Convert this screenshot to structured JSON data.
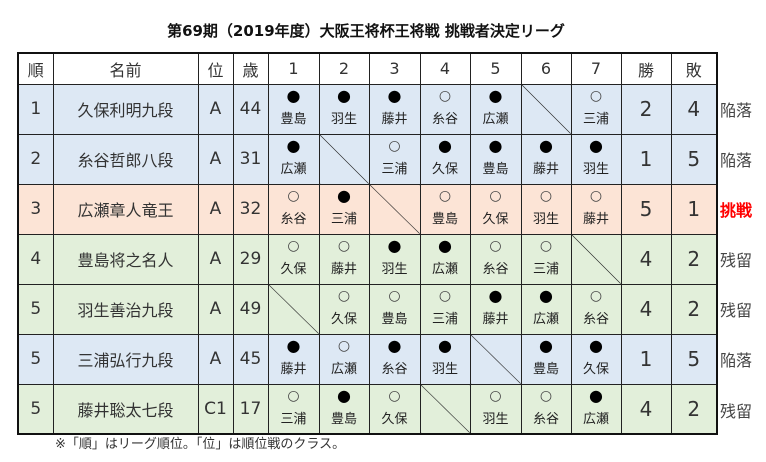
{
  "title": "第69期（2019年度）大阪王将杯王将戦 挑戦者決定リーグ",
  "headers": [
    "順",
    "名前",
    "位",
    "歳",
    "1",
    "2",
    "3",
    "4",
    "5",
    "6",
    "7",
    "勝",
    "敗"
  ],
  "rows": [
    {
      "rank": "1",
      "name": "久保利明九段",
      "class": "A",
      "age": "44",
      "color": "blue",
      "games": [
        {
          "m": "●",
          "o": "豊島"
        },
        {
          "m": "●",
          "o": "羽生"
        },
        {
          "m": "●",
          "o": "藤井"
        },
        {
          "m": "○",
          "o": "糸谷"
        },
        {
          "m": "●",
          "o": "広瀬"
        },
        null,
        {
          "m": "○",
          "o": "三浦"
        }
      ],
      "wins": "2",
      "losses": "4",
      "result": "陥落"
    },
    {
      "rank": "2",
      "name": "糸谷哲郎八段",
      "class": "A",
      "age": "31",
      "color": "blue",
      "games": [
        {
          "m": "●",
          "o": "広瀬"
        },
        null,
        {
          "m": "○",
          "o": "三浦"
        },
        {
          "m": "●",
          "o": "久保"
        },
        {
          "m": "●",
          "o": "豊島"
        },
        {
          "m": "●",
          "o": "藤井"
        },
        {
          "m": "●",
          "o": "羽生"
        }
      ],
      "wins": "1",
      "losses": "5",
      "result": "陥落"
    },
    {
      "rank": "3",
      "name": "広瀬章人竜王",
      "class": "A",
      "age": "32",
      "color": "pink",
      "games": [
        {
          "m": "○",
          "o": "糸谷"
        },
        {
          "m": "●",
          "o": "三浦"
        },
        null,
        {
          "m": "○",
          "o": "豊島"
        },
        {
          "m": "○",
          "o": "久保"
        },
        {
          "m": "○",
          "o": "羽生"
        },
        {
          "m": "○",
          "o": "藤井"
        }
      ],
      "wins": "5",
      "losses": "1",
      "result": "挑戦"
    },
    {
      "rank": "4",
      "name": "豊島将之名人",
      "class": "A",
      "age": "29",
      "color": "green",
      "games": [
        {
          "m": "○",
          "o": "久保"
        },
        {
          "m": "○",
          "o": "藤井"
        },
        {
          "m": "●",
          "o": "羽生"
        },
        {
          "m": "●",
          "o": "広瀬"
        },
        {
          "m": "○",
          "o": "糸谷"
        },
        {
          "m": "○",
          "o": "三浦"
        },
        null
      ],
      "wins": "4",
      "losses": "2",
      "result": "残留"
    },
    {
      "rank": "5",
      "name": "羽生善治九段",
      "class": "A",
      "age": "49",
      "color": "green",
      "games": [
        null,
        {
          "m": "○",
          "o": "久保"
        },
        {
          "m": "○",
          "o": "豊島"
        },
        {
          "m": "○",
          "o": "三浦"
        },
        {
          "m": "●",
          "o": "藤井"
        },
        {
          "m": "●",
          "o": "広瀬"
        },
        {
          "m": "○",
          "o": "糸谷"
        }
      ],
      "wins": "4",
      "losses": "2",
      "result": "残留"
    },
    {
      "rank": "5",
      "name": "三浦弘行九段",
      "class": "A",
      "age": "45",
      "color": "blue",
      "games": [
        {
          "m": "●",
          "o": "藤井"
        },
        {
          "m": "○",
          "o": "広瀬"
        },
        {
          "m": "●",
          "o": "糸谷"
        },
        {
          "m": "●",
          "o": "羽生"
        },
        null,
        {
          "m": "●",
          "o": "豊島"
        },
        {
          "m": "●",
          "o": "久保"
        }
      ],
      "wins": "1",
      "losses": "5",
      "result": "陥落"
    },
    {
      "rank": "5",
      "name": "藤井聡太七段",
      "class": "C1",
      "age": "17",
      "color": "green",
      "games": [
        {
          "m": "○",
          "o": "三浦"
        },
        {
          "m": "●",
          "o": "豊島"
        },
        {
          "m": "○",
          "o": "久保"
        },
        null,
        {
          "m": "○",
          "o": "羽生"
        },
        {
          "m": "○",
          "o": "糸谷"
        },
        {
          "m": "●",
          "o": "広瀬"
        }
      ],
      "wins": "4",
      "losses": "2",
      "result": "残留"
    }
  ],
  "note": "※「順」はリーグ順位。「位」は順位戦のクラス。",
  "colors": {
    "blue": "#dde8f4",
    "pink": "#fce4d6",
    "green": "#e2efda",
    "challenger": "#ff0000"
  }
}
